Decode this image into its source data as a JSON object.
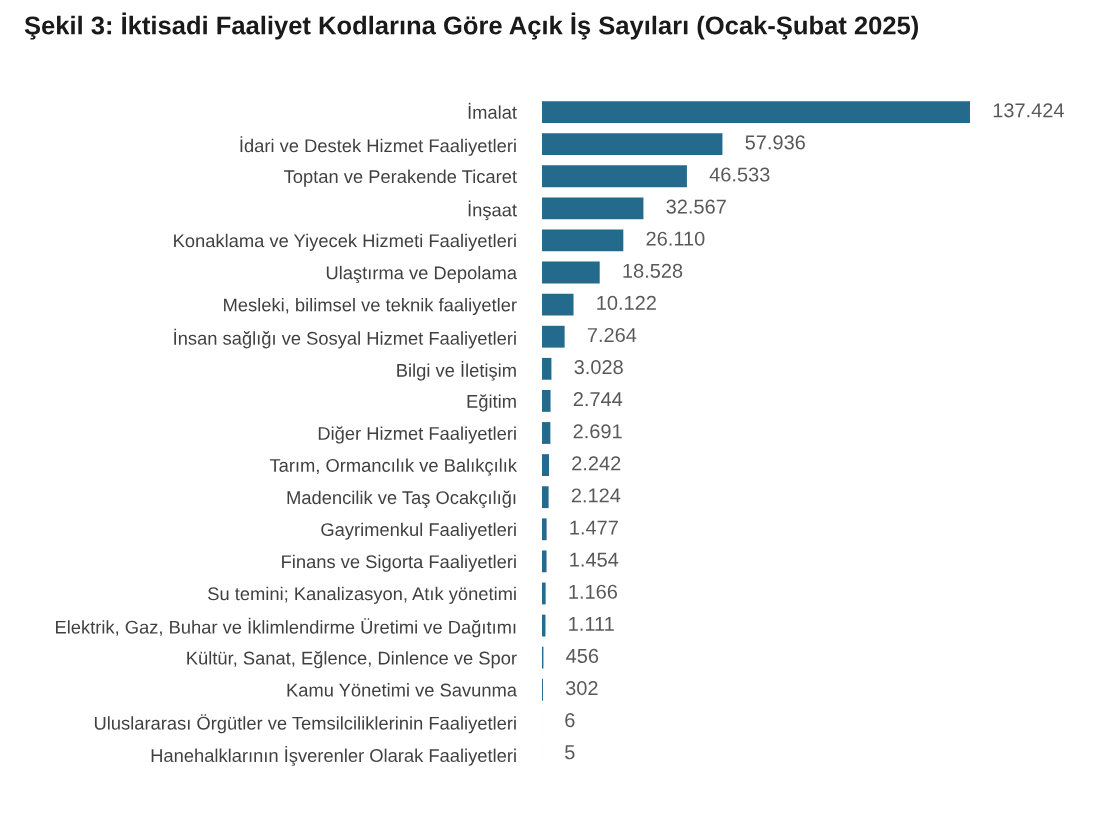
{
  "chart_data": {
    "type": "bar",
    "orientation": "horizontal",
    "title": "Şekil 3: İktisadi Faaliyet Kodlarına Göre Açık İş Sayıları (Ocak-Şubat 2025)",
    "categories": [
      "İmalat",
      "İdari ve Destek Hizmet Faaliyetleri",
      "Toptan ve Perakende Ticaret",
      "İnşaat",
      "Konaklama ve Yiyecek Hizmeti Faaliyetleri",
      "Ulaştırma ve Depolama",
      "Mesleki, bilimsel ve teknik faaliyetler",
      "İnsan sağlığı ve Sosyal Hizmet Faaliyetleri",
      "Bilgi ve İletişim",
      "Eğitim",
      "Diğer Hizmet Faaliyetleri",
      "Tarım, Ormancılık ve Balıkçılık",
      "Madencilik ve Taş Ocakçılığı",
      "Gayrimenkul Faaliyetleri",
      "Finans ve Sigorta Faaliyetleri",
      "Su temini; Kanalizasyon, Atık yönetimi",
      "Elektrik, Gaz, Buhar ve İklimlendirme Üretimi ve Dağıtımı",
      "Kültür, Sanat, Eğlence, Dinlence ve Spor",
      "Kamu Yönetimi ve Savunma",
      "Uluslararası Örgütler ve Temsilciliklerinin Faaliyetleri",
      "Hanehalklarının İşverenler Olarak Faaliyetleri"
    ],
    "values": [
      137424,
      57936,
      46533,
      32567,
      26110,
      18528,
      10122,
      7264,
      3028,
      2744,
      2691,
      2242,
      2124,
      1477,
      1454,
      1166,
      1111,
      456,
      302,
      6,
      5
    ],
    "value_labels": [
      "137.424",
      "57.936",
      "46.533",
      "32.567",
      "26.110",
      "18.528",
      "10.122",
      "7.264",
      "3.028",
      "2.744",
      "2.691",
      "2.242",
      "2.124",
      "1.477",
      "1.454",
      "1.166",
      "1.111",
      "456",
      "302",
      "6",
      "5"
    ],
    "color": "#236a8d",
    "tick_labels": "y",
    "grid": false,
    "legend": false
  }
}
